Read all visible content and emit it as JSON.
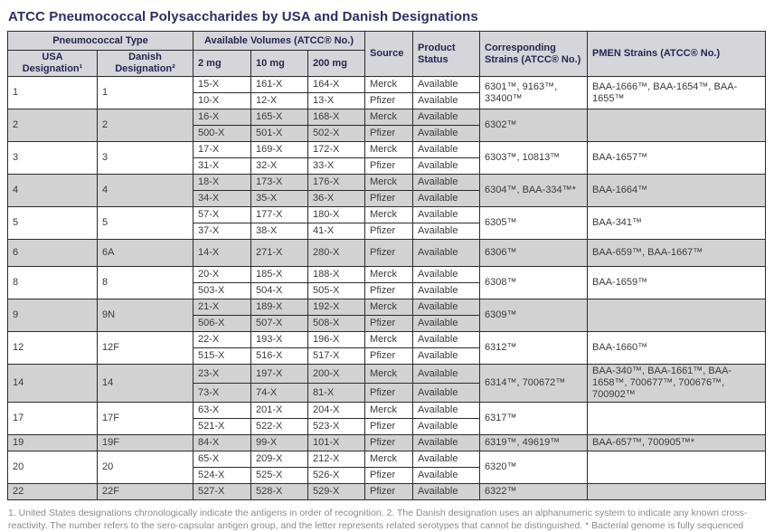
{
  "title": "ATCC Pneumococcal Polysaccharides by USA and Danish Designations",
  "colors": {
    "title_text": "#2d2d68",
    "header_bg": "#d5d5da",
    "header_text": "#26264f",
    "row_shade": "#d2d2d2",
    "body_text": "#3a3a3a",
    "border": "#2b2b2b",
    "footnote_text": "#8b8b88"
  },
  "table": {
    "header": {
      "pneumococcal_type": "Pneumococcal Type",
      "usa_designation": "USA Designation¹",
      "danish_designation": "Danish Designation²",
      "available_volumes": "Available Volumes (ATCC® No.)",
      "vol_2mg": "2 mg",
      "vol_10mg": "10 mg",
      "vol_200mg": "200 mg",
      "source": "Source",
      "product_status": "Product Status",
      "corresponding_strains": "Corresponding Strains (ATCC® No.)",
      "pmen_strains": "PMEN Strains (ATCC® No.)"
    },
    "groups": [
      {
        "usa": "1",
        "danish": "1",
        "shaded": false,
        "tall": false,
        "rows": [
          {
            "mg2": "15-X",
            "mg10": "161-X",
            "mg200": "164-X",
            "source": "Merck",
            "status": "Available"
          },
          {
            "mg2": "10-X",
            "mg10": "12-X",
            "mg200": "13-X",
            "source": "Pfizer",
            "status": "Available"
          }
        ],
        "corresponding": "6301™, 9163™, 33400™",
        "pmen": "BAA-1666™, BAA-1654™, BAA-1655™"
      },
      {
        "usa": "2",
        "danish": "2",
        "shaded": true,
        "tall": false,
        "rows": [
          {
            "mg2": "16-X",
            "mg10": "165-X",
            "mg200": "168-X",
            "source": "Merck",
            "status": "Available"
          },
          {
            "mg2": "500-X",
            "mg10": "501-X",
            "mg200": "502-X",
            "source": "Pfizer",
            "status": "Available"
          }
        ],
        "corresponding": "6302™",
        "pmen": ""
      },
      {
        "usa": "3",
        "danish": "3",
        "shaded": false,
        "tall": false,
        "rows": [
          {
            "mg2": "17-X",
            "mg10": "169-X",
            "mg200": "172-X",
            "source": "Merck",
            "status": "Available"
          },
          {
            "mg2": "31-X",
            "mg10": "32-X",
            "mg200": "33-X",
            "source": "Pfizer",
            "status": "Available"
          }
        ],
        "corresponding": "6303™, 10813™",
        "pmen": "BAA-1657™"
      },
      {
        "usa": "4",
        "danish": "4",
        "shaded": true,
        "tall": false,
        "rows": [
          {
            "mg2": "18-X",
            "mg10": "173-X",
            "mg200": "176-X",
            "source": "Merck",
            "status": "Available"
          },
          {
            "mg2": "34-X",
            "mg10": "35-X",
            "mg200": "36-X",
            "source": "Pfizer",
            "status": "Available"
          }
        ],
        "corresponding": "6304™, BAA-334™*",
        "pmen": "BAA-1664™"
      },
      {
        "usa": "5",
        "danish": "5",
        "shaded": false,
        "tall": false,
        "rows": [
          {
            "mg2": "57-X",
            "mg10": "177-X",
            "mg200": "180-X",
            "source": "Merck",
            "status": "Available"
          },
          {
            "mg2": "37-X",
            "mg10": "38-X",
            "mg200": "41-X",
            "source": "Pfizer",
            "status": "Available"
          }
        ],
        "corresponding": "6305™",
        "pmen": "BAA-341™"
      },
      {
        "usa": "6",
        "danish": "6A",
        "shaded": true,
        "tall": true,
        "rows": [
          {
            "mg2": "14-X",
            "mg10": "271-X",
            "mg200": "280-X",
            "source": "Pfizer",
            "status": "Available"
          }
        ],
        "corresponding": "6306™",
        "pmen": "BAA-659™, BAA-1667™"
      },
      {
        "usa": "8",
        "danish": "8",
        "shaded": false,
        "tall": false,
        "rows": [
          {
            "mg2": "20-X",
            "mg10": "185-X",
            "mg200": "188-X",
            "source": "Merck",
            "status": "Available"
          },
          {
            "mg2": "503-X",
            "mg10": "504-X",
            "mg200": "505-X",
            "source": "Pfizer",
            "status": "Available"
          }
        ],
        "corresponding": "6308™",
        "pmen": "BAA-1659™"
      },
      {
        "usa": "9",
        "danish": "9N",
        "shaded": true,
        "tall": false,
        "rows": [
          {
            "mg2": "21-X",
            "mg10": "189-X",
            "mg200": "192-X",
            "source": "Merck",
            "status": "Available"
          },
          {
            "mg2": "506-X",
            "mg10": "507-X",
            "mg200": "508-X",
            "source": "Pfizer",
            "status": "Available"
          }
        ],
        "corresponding": "6309™",
        "pmen": ""
      },
      {
        "usa": "12",
        "danish": "12F",
        "shaded": false,
        "tall": false,
        "rows": [
          {
            "mg2": "22-X",
            "mg10": "193-X",
            "mg200": "196-X",
            "source": "Merck",
            "status": "Available"
          },
          {
            "mg2": "515-X",
            "mg10": "516-X",
            "mg200": "517-X",
            "source": "Pfizer",
            "status": "Available"
          }
        ],
        "corresponding": "6312™",
        "pmen": "BAA-1660™"
      },
      {
        "usa": "14",
        "danish": "14",
        "shaded": true,
        "tall": false,
        "rows": [
          {
            "mg2": "23-X",
            "mg10": "197-X",
            "mg200": "200-X",
            "source": "Merck",
            "status": "Available"
          },
          {
            "mg2": "73-X",
            "mg10": "74-X",
            "mg200": "81-X",
            "source": "Pfizer",
            "status": "Available"
          }
        ],
        "corresponding": "6314™, 700672™",
        "pmen": "BAA-340™, BAA-1661™, BAA-1658™, 700677™, 700676™, 700902™"
      },
      {
        "usa": "17",
        "danish": "17F",
        "shaded": false,
        "tall": false,
        "rows": [
          {
            "mg2": "63-X",
            "mg10": "201-X",
            "mg200": "204-X",
            "source": "Merck",
            "status": "Available"
          },
          {
            "mg2": "521-X",
            "mg10": "522-X",
            "mg200": "523-X",
            "source": "Pfizer",
            "status": "Available"
          }
        ],
        "corresponding": "6317™",
        "pmen": ""
      },
      {
        "usa": "19",
        "danish": "19F",
        "shaded": true,
        "tall": false,
        "rows": [
          {
            "mg2": "84-X",
            "mg10": "99-X",
            "mg200": "101-X",
            "source": "Pfizer",
            "status": "Available"
          }
        ],
        "corresponding": "6319™, 49619™",
        "pmen": "BAA-657™, 700905™*"
      },
      {
        "usa": "20",
        "danish": "20",
        "shaded": false,
        "tall": false,
        "rows": [
          {
            "mg2": "65-X",
            "mg10": "209-X",
            "mg200": "212-X",
            "source": "Merck",
            "status": "Available"
          },
          {
            "mg2": "524-X",
            "mg10": "525-X",
            "mg200": "526-X",
            "source": "Pfizer",
            "status": "Available"
          }
        ],
        "corresponding": "6320™",
        "pmen": ""
      },
      {
        "usa": "22",
        "danish": "22F",
        "shaded": true,
        "tall": false,
        "rows": [
          {
            "mg2": "527-X",
            "mg10": "528-X",
            "mg200": "529-X",
            "source": "Pfizer",
            "status": "Available"
          }
        ],
        "corresponding": "6322™",
        "pmen": ""
      }
    ]
  },
  "footnote": "1. United States designations chronologically indicate the antigens in order of recognition. 2. The Danish designation uses an alphanumeric system to indicate any known cross-reactivity. The number refers to the sero-capsular antigen group, and the letter represents related serotypes that cannot be distinguished. * Bacterial genome is fully sequenced"
}
